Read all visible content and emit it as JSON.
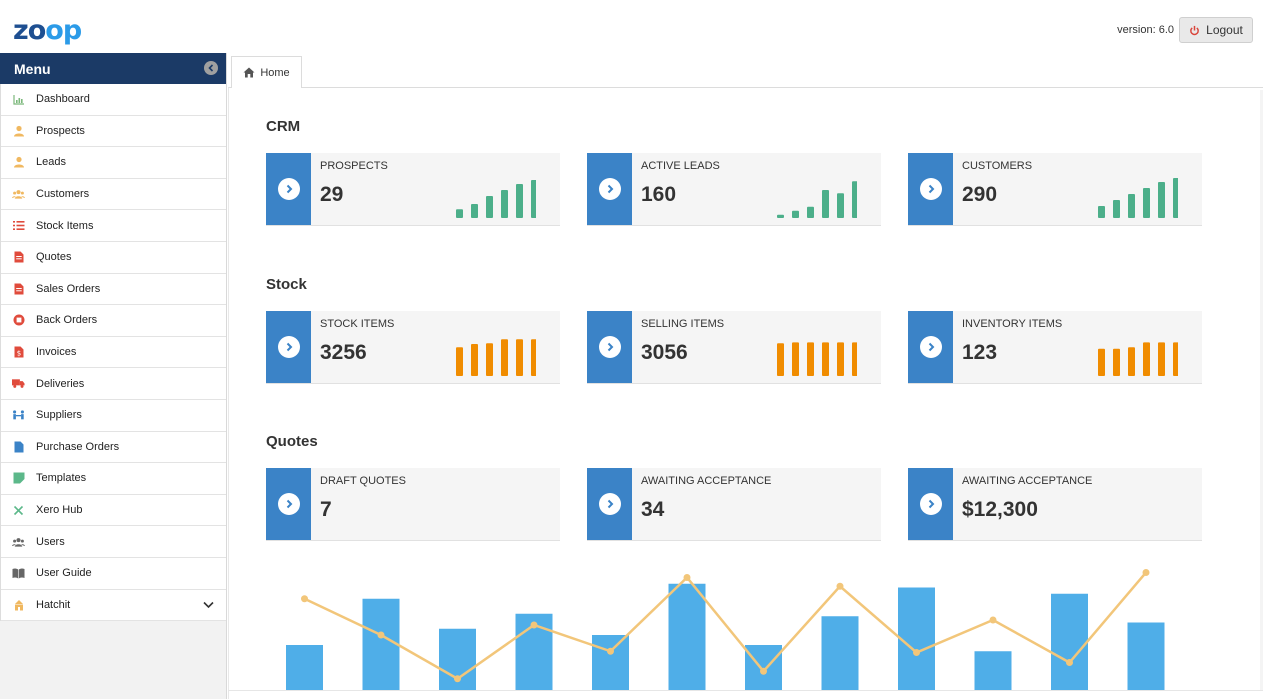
{
  "header": {
    "logo_part1": "zo",
    "logo_part2": "op",
    "version": "version: 6.0",
    "logout_label": "Logout"
  },
  "sidebar": {
    "title": "Menu",
    "items": [
      {
        "label": "Dashboard",
        "icon": "chart-icon",
        "color": "#7bb87b"
      },
      {
        "label": "Prospects",
        "icon": "user-icon",
        "color": "#f0b860"
      },
      {
        "label": "Leads",
        "icon": "user-icon",
        "color": "#f0b860"
      },
      {
        "label": "Customers",
        "icon": "users-icon",
        "color": "#f0b860"
      },
      {
        "label": "Stock Items",
        "icon": "list-icon",
        "color": "#e04b3c"
      },
      {
        "label": "Quotes",
        "icon": "document-icon",
        "color": "#e04b3c"
      },
      {
        "label": "Sales Orders",
        "icon": "document-icon",
        "color": "#e04b3c"
      },
      {
        "label": "Back Orders",
        "icon": "stop-circle-icon",
        "color": "#e04b3c"
      },
      {
        "label": "Invoices",
        "icon": "invoice-icon",
        "color": "#e04b3c"
      },
      {
        "label": "Deliveries",
        "icon": "truck-icon",
        "color": "#e04b3c"
      },
      {
        "label": "Suppliers",
        "icon": "suppliers-icon",
        "color": "#3b83c7"
      },
      {
        "label": "Purchase Orders",
        "icon": "file-icon",
        "color": "#3b83c7"
      },
      {
        "label": "Templates",
        "icon": "template-icon",
        "color": "#5cb88a"
      },
      {
        "label": "Xero Hub",
        "icon": "x-icon",
        "color": "#5cb88a"
      },
      {
        "label": "Users",
        "icon": "users-icon",
        "color": "#666666"
      },
      {
        "label": "User Guide",
        "icon": "book-icon",
        "color": "#666666"
      },
      {
        "label": "Hatchit",
        "icon": "hatchit-icon",
        "color": "#f0b860"
      }
    ]
  },
  "tab": {
    "label": "Home"
  },
  "sections": [
    {
      "title": "CRM",
      "cards": [
        {
          "label": "PROSPECTS",
          "value": "29",
          "color": "#4caf8a",
          "bars": [
            0.22,
            0.35,
            0.55,
            0.7,
            0.85,
            0.95
          ]
        },
        {
          "label": "ACTIVE LEADS",
          "value": "160",
          "color": "#4caf8a",
          "bars": [
            0.08,
            0.18,
            0.28,
            0.7,
            0.62,
            0.92
          ]
        },
        {
          "label": "CUSTOMERS",
          "value": "290",
          "color": "#4caf8a",
          "bars": [
            0.3,
            0.45,
            0.6,
            0.75,
            0.9,
            1.0
          ]
        }
      ]
    },
    {
      "title": "Stock",
      "cards": [
        {
          "label": "STOCK ITEMS",
          "value": "3256",
          "color": "#f08c00",
          "bars": [
            0.72,
            0.8,
            0.82,
            0.92,
            0.92,
            0.92
          ]
        },
        {
          "label": "SELLING ITEMS",
          "value": "3056",
          "color": "#f08c00",
          "bars": [
            0.82,
            0.84,
            0.84,
            0.84,
            0.84,
            0.84
          ]
        },
        {
          "label": "INVENTORY ITEMS",
          "value": "123",
          "color": "#f08c00",
          "bars": [
            0.68,
            0.68,
            0.72,
            0.84,
            0.84,
            0.84
          ]
        }
      ]
    },
    {
      "title": "Quotes",
      "cards": [
        {
          "label": "DRAFT QUOTES",
          "value": "7"
        },
        {
          "label": "AWAITING ACCEPTANCE",
          "value": "34"
        },
        {
          "label": "AWAITING ACCEPTANCE",
          "value": "$12,300"
        }
      ]
    }
  ],
  "chart_data": {
    "type": "bar",
    "bar_color": "#4faee8",
    "line_color": "#f2c67a",
    "bars": [
      0.36,
      0.73,
      0.49,
      0.61,
      0.44,
      0.85,
      0.36,
      0.59,
      0.82,
      0.31,
      0.77,
      0.54
    ],
    "line": [
      0.73,
      0.44,
      0.09,
      0.52,
      0.31,
      0.9,
      0.15,
      0.83,
      0.3,
      0.56,
      0.22,
      0.94
    ]
  }
}
